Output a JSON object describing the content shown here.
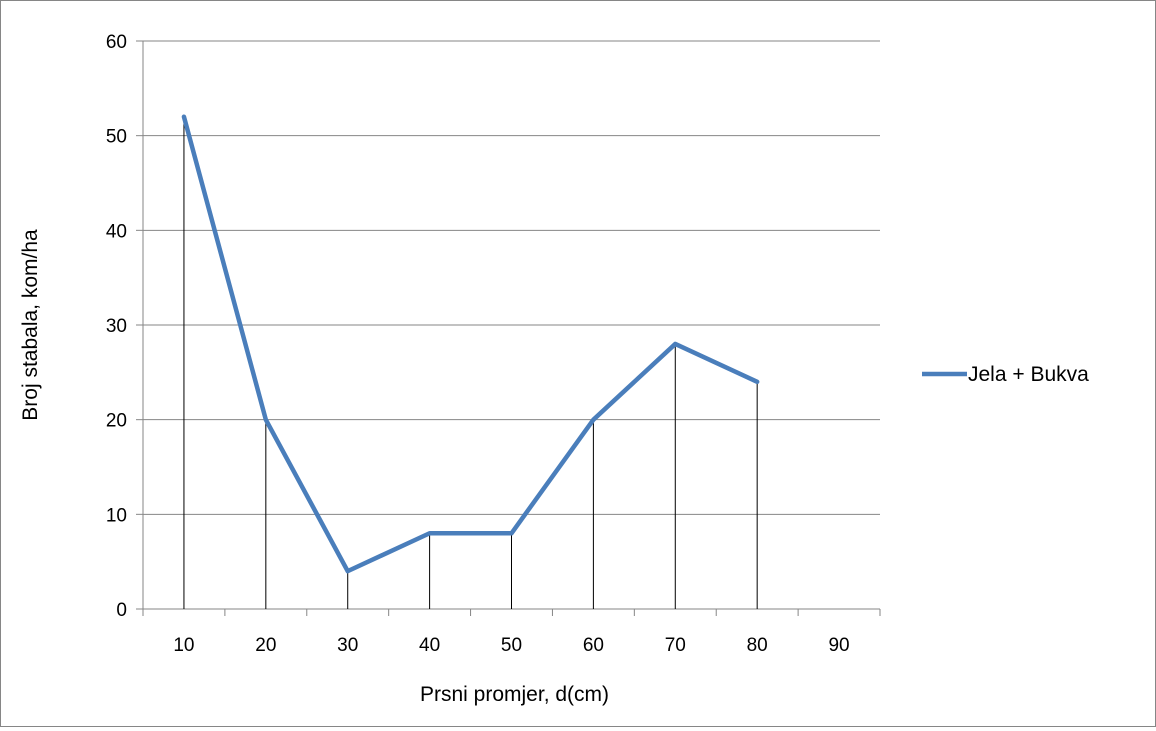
{
  "chart_data": {
    "type": "line",
    "title": "",
    "xlabel": "Prsni promjer, d(cm)",
    "ylabel": "Broj stabala, kom/ha",
    "categories": [
      "10",
      "20",
      "30",
      "40",
      "50",
      "60",
      "70",
      "80",
      "90"
    ],
    "series": [
      {
        "name": "Jela + Bukva",
        "values": [
          52,
          20,
          4,
          8,
          8,
          20,
          28,
          24,
          null
        ]
      }
    ],
    "drop_lines": true,
    "ylim": [
      0,
      60
    ],
    "yticks": [
      0,
      10,
      20,
      30,
      40,
      50,
      60
    ],
    "grid": "horizontal major gridlines",
    "legend_position": "right",
    "colors": {
      "series": "#4a7ebb",
      "gridline": "#868686",
      "drop_line": "#000000",
      "frame": "#868686"
    }
  }
}
